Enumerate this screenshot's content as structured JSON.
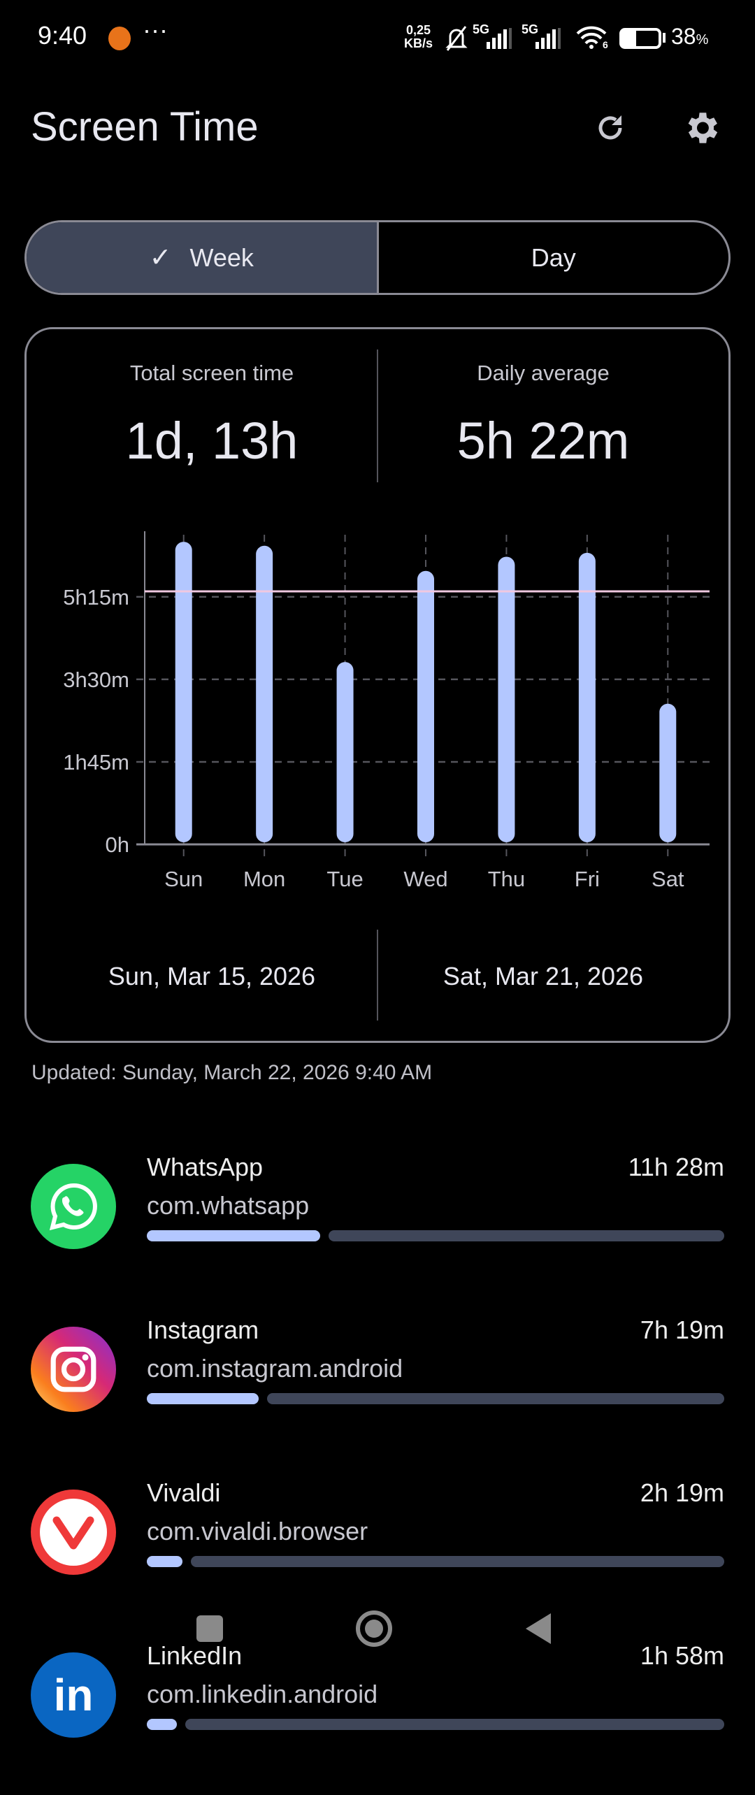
{
  "status_bar": {
    "time": "9:40",
    "net_speed_value": "0,25",
    "net_speed_unit": "KB/s",
    "network_1": "5G",
    "network_2": "5G",
    "wifi_band": "6",
    "battery": "38",
    "battery_unit": "%",
    "battery_level": 0.38
  },
  "header": {
    "title": "Screen Time",
    "refresh_icon": "refresh-icon",
    "settings_icon": "gear-icon"
  },
  "toggle": {
    "week_label": "Week",
    "day_label": "Day",
    "selected": "Week"
  },
  "summary": {
    "total_label": "Total screen time",
    "total_value": "1d, 13h",
    "average_label": "Daily average",
    "average_value": "5h 22m"
  },
  "range": {
    "start": "Sun, Mar 15, 2026",
    "end": "Sat, Mar 21, 2026"
  },
  "updated": "Updated: Sunday, March 22, 2026 9:40 AM",
  "chart_data": {
    "type": "bar",
    "categories": [
      "Sun",
      "Mon",
      "Tue",
      "Wed",
      "Thu",
      "Fri",
      "Sat"
    ],
    "values_minutes": [
      385,
      380,
      232,
      348,
      366,
      371,
      179
    ],
    "y_ticks": [
      {
        "value": 0,
        "label": "0h"
      },
      {
        "value": 105,
        "label": "1h45m"
      },
      {
        "value": 210,
        "label": "3h30m"
      },
      {
        "value": 315,
        "label": "5h15m"
      }
    ],
    "average_line_minutes": 322,
    "ylim": [
      0,
      394
    ],
    "grid": true,
    "bar_color": "#b3c7ff",
    "average_color": "#f0c8e0"
  },
  "apps": [
    {
      "name": "WhatsApp",
      "package": "com.whatsapp",
      "time": "11h 28m",
      "share": 0.3,
      "icon": "whatsapp-icon",
      "color": "#25d366"
    },
    {
      "name": "Instagram",
      "package": "com.instagram.android",
      "time": "7h 19m",
      "share": 0.194,
      "icon": "instagram-icon",
      "color": "#e1306c"
    },
    {
      "name": "Vivaldi",
      "package": "com.vivaldi.browser",
      "time": "2h 19m",
      "share": 0.062,
      "icon": "vivaldi-icon",
      "color": "#ef3939"
    },
    {
      "name": "LinkedIn",
      "package": "com.linkedin.android",
      "time": "1h 58m",
      "share": 0.052,
      "icon": "linkedin-icon",
      "color": "#0a66c2"
    }
  ]
}
